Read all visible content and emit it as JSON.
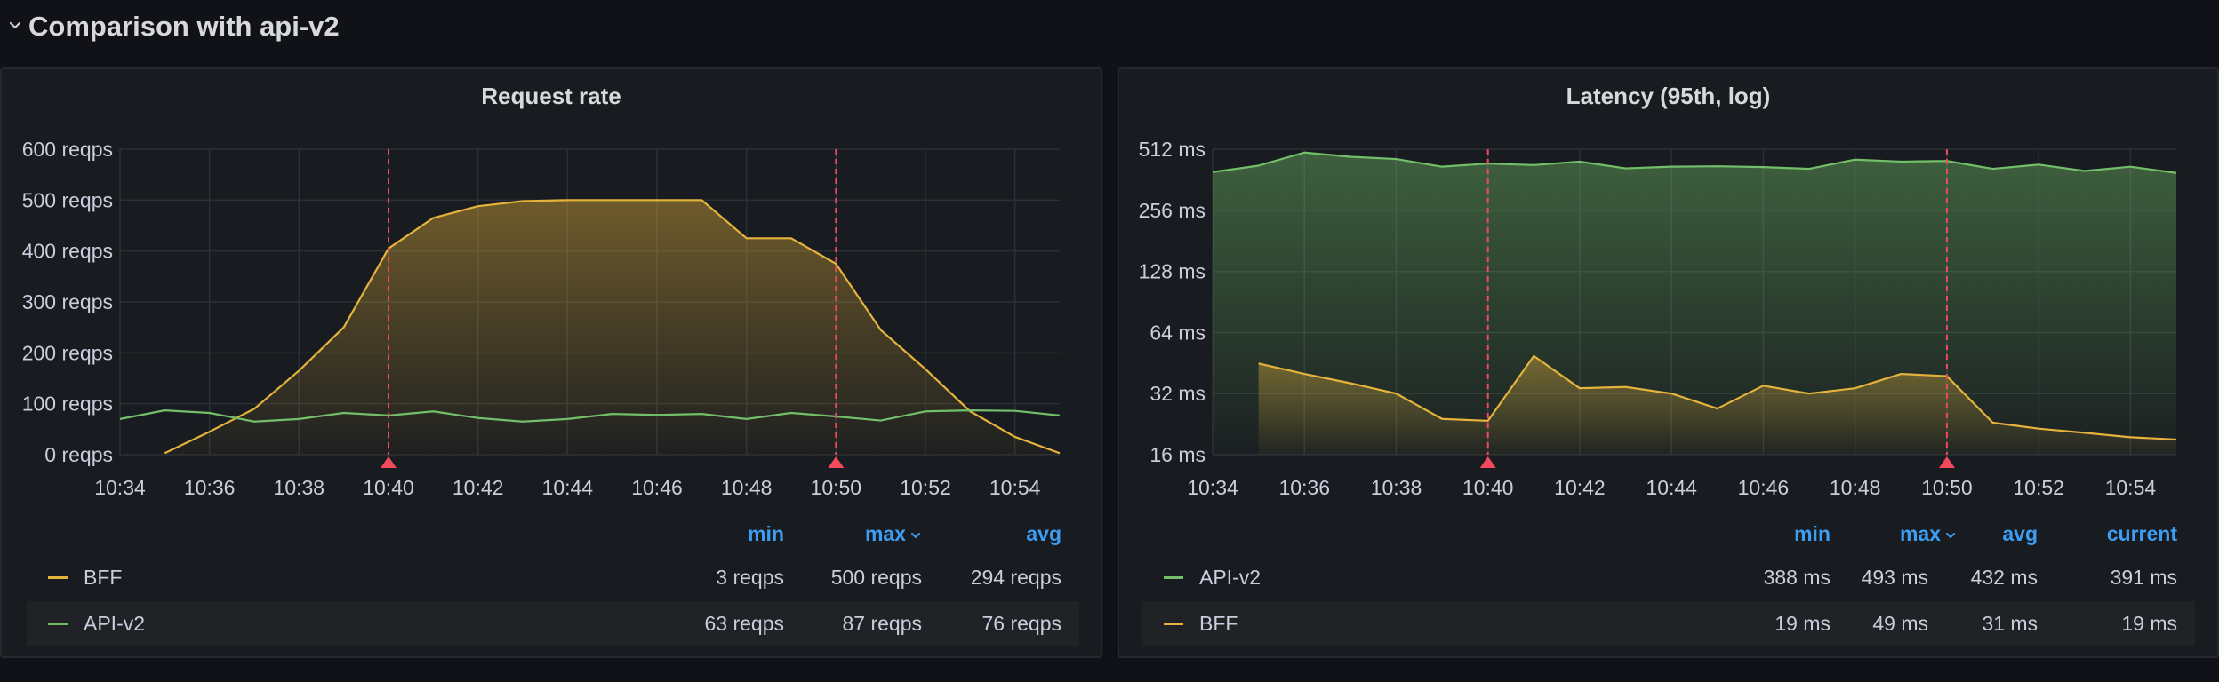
{
  "row": {
    "title": "Comparison with api-v2"
  },
  "colors": {
    "bff": "#e5b33c",
    "api_v2": "#73bf69",
    "annotation": "#f2495c",
    "legend_header": "#3d9df2"
  },
  "panels": {
    "request_rate": {
      "title": "Request rate",
      "legend": {
        "headers": [
          "min",
          "max",
          "avg"
        ],
        "rows": [
          {
            "name": "BFF",
            "values": [
              "3 reqps",
              "500 reqps",
              "294 reqps"
            ]
          },
          {
            "name": "API-v2",
            "values": [
              "63 reqps",
              "87 reqps",
              "76 reqps"
            ]
          }
        ]
      }
    },
    "latency": {
      "title": "Latency (95th, log)",
      "legend": {
        "headers": [
          "min",
          "max",
          "avg",
          "current"
        ],
        "rows": [
          {
            "name": "API-v2",
            "values": [
              "388 ms",
              "493 ms",
              "432 ms",
              "391 ms"
            ]
          },
          {
            "name": "BFF",
            "values": [
              "19 ms",
              "49 ms",
              "31 ms",
              "19 ms"
            ]
          }
        ]
      }
    }
  },
  "chart_data": [
    {
      "type": "area",
      "title": "Request rate",
      "xlabel": "",
      "ylabel": "",
      "x_tick_labels": [
        "10:34",
        "10:36",
        "10:38",
        "10:40",
        "10:42",
        "10:44",
        "10:46",
        "10:48",
        "10:50",
        "10:52",
        "10:54"
      ],
      "x_ticks": [
        0,
        2,
        4,
        6,
        8,
        10,
        12,
        14,
        16,
        18,
        20
      ],
      "xlim": [
        0,
        21
      ],
      "y_tick_labels": [
        "0 reqps",
        "100 reqps",
        "200 reqps",
        "300 reqps",
        "400 reqps",
        "500 reqps",
        "600 reqps"
      ],
      "y_ticks": [
        0,
        100,
        200,
        300,
        400,
        500,
        600
      ],
      "ylim": [
        0,
        600
      ],
      "grid": true,
      "legend_position": "bottom",
      "annotations_x": [
        6,
        16
      ],
      "series": [
        {
          "name": "BFF",
          "color": "#e5b33c",
          "fill": true,
          "x": [
            1,
            2,
            3,
            4,
            5,
            6,
            7,
            8,
            9,
            10,
            11,
            12,
            13,
            14,
            15,
            16,
            17,
            18,
            19,
            20,
            21
          ],
          "values": [
            3,
            45,
            90,
            165,
            250,
            405,
            465,
            488,
            498,
            500,
            500,
            500,
            500,
            425,
            425,
            375,
            245,
            168,
            85,
            35,
            3
          ]
        },
        {
          "name": "API-v2",
          "color": "#73bf69",
          "fill": false,
          "x": [
            0,
            1,
            2,
            3,
            4,
            5,
            6,
            7,
            8,
            9,
            10,
            11,
            12,
            13,
            14,
            15,
            16,
            17,
            18,
            19,
            20,
            21
          ],
          "values": [
            70,
            87,
            82,
            65,
            70,
            82,
            77,
            85,
            72,
            65,
            70,
            80,
            78,
            80,
            70,
            82,
            75,
            67,
            85,
            87,
            86,
            77
          ]
        }
      ]
    },
    {
      "type": "area",
      "title": "Latency (95th, log)",
      "xlabel": "",
      "ylabel": "",
      "y_scale": "log2",
      "x_tick_labels": [
        "10:34",
        "10:36",
        "10:38",
        "10:40",
        "10:42",
        "10:44",
        "10:46",
        "10:48",
        "10:50",
        "10:52",
        "10:54"
      ],
      "x_ticks": [
        0,
        2,
        4,
        6,
        8,
        10,
        12,
        14,
        16,
        18,
        20
      ],
      "xlim": [
        0,
        21
      ],
      "y_tick_labels": [
        "16 ms",
        "32 ms",
        "64 ms",
        "128 ms",
        "256 ms",
        "512 ms"
      ],
      "y_ticks": [
        16,
        32,
        64,
        128,
        256,
        512
      ],
      "ylim": [
        16,
        512
      ],
      "grid": true,
      "legend_position": "bottom",
      "annotations_x": [
        6,
        16
      ],
      "series": [
        {
          "name": "API-v2",
          "color": "#73bf69",
          "fill": true,
          "x": [
            0,
            1,
            2,
            3,
            4,
            5,
            6,
            7,
            8,
            9,
            10,
            11,
            12,
            13,
            14,
            15,
            16,
            17,
            18,
            19,
            20,
            21
          ],
          "values": [
            395,
            425,
            493,
            470,
            458,
            420,
            435,
            428,
            445,
            412,
            420,
            422,
            418,
            410,
            455,
            445,
            448,
            410,
            430,
            400,
            420,
            391
          ]
        },
        {
          "name": "BFF",
          "color": "#e5b33c",
          "fill": true,
          "x": [
            1,
            2,
            3,
            4,
            5,
            6,
            7,
            8,
            9,
            10,
            11,
            12,
            13,
            14,
            15,
            16,
            17,
            18,
            19,
            20,
            21
          ],
          "values": [
            45,
            40,
            36,
            32,
            24,
            23.5,
            49,
            34,
            34.5,
            32,
            27,
            35,
            32,
            34,
            40,
            39,
            23,
            21.5,
            20.5,
            19.5,
            19
          ]
        }
      ]
    }
  ]
}
